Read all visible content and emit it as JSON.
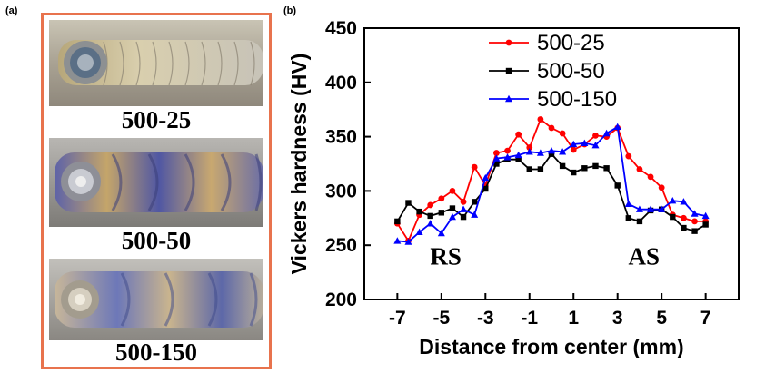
{
  "panel_labels": {
    "a": "(a)",
    "b": "(b)"
  },
  "photos": [
    {
      "caption": "500-25"
    },
    {
      "caption": "500-50"
    },
    {
      "caption": "500-150"
    }
  ],
  "colors": {
    "frame": "#e8734d"
  },
  "chart_data": {
    "type": "line",
    "xlabel": "Distance from center (mm)",
    "ylabel": "Vickers hardness (HV)",
    "xlim": [
      -8.5,
      8.5
    ],
    "ylim": [
      200,
      450
    ],
    "xticks": [
      -7,
      -5,
      -3,
      -1,
      1,
      3,
      5,
      7
    ],
    "yticks": [
      200,
      250,
      300,
      350,
      400,
      450
    ],
    "legend_position": "top-left",
    "annotations": [
      {
        "text": "RS",
        "x": -4.8,
        "y": 232
      },
      {
        "text": "AS",
        "x": 4.2,
        "y": 232
      }
    ],
    "series": [
      {
        "name": "500-25",
        "color": "#ff0000",
        "marker": "circle",
        "x": [
          -7,
          -6.5,
          -6,
          -5.5,
          -5,
          -4.5,
          -4,
          -3.5,
          -3,
          -2.5,
          -2,
          -1.5,
          -1,
          -0.5,
          0,
          0.5,
          1,
          1.5,
          2,
          2.5,
          3,
          3.5,
          4,
          4.5,
          5,
          5.5,
          6,
          6.5,
          7
        ],
        "values": [
          270,
          254,
          278,
          287,
          293,
          300,
          290,
          322,
          305,
          335,
          337,
          352,
          340,
          366,
          358,
          353,
          338,
          343,
          351,
          350,
          358,
          332,
          320,
          313,
          303,
          278,
          275,
          272,
          272
        ]
      },
      {
        "name": "500-50",
        "color": "#000000",
        "marker": "square",
        "x": [
          -7,
          -6.5,
          -6,
          -5.5,
          -5,
          -4.5,
          -4,
          -3.5,
          -3,
          -2.5,
          -2,
          -1.5,
          -1,
          -0.5,
          0,
          0.5,
          1,
          1.5,
          2,
          2.5,
          3,
          3.5,
          4,
          4.5,
          5,
          5.5,
          6,
          6.5,
          7
        ],
        "values": [
          272,
          289,
          281,
          277,
          280,
          284,
          276,
          290,
          302,
          325,
          329,
          329,
          320,
          320,
          334,
          323,
          317,
          321,
          323,
          321,
          305,
          275,
          272,
          282,
          283,
          276,
          266,
          263,
          269
        ]
      },
      {
        "name": "500-150",
        "color": "#0000ff",
        "marker": "triangle",
        "x": [
          -7,
          -6.5,
          -6,
          -5.5,
          -5,
          -4.5,
          -4,
          -3.5,
          -3,
          -2.5,
          -2,
          -1.5,
          -1,
          -0.5,
          0,
          0.5,
          1,
          1.5,
          2,
          2.5,
          3,
          3.5,
          4,
          4.5,
          5,
          5.5,
          6,
          6.5,
          7
        ],
        "values": [
          254,
          253,
          262,
          270,
          261,
          276,
          283,
          278,
          312,
          330,
          331,
          333,
          336,
          335,
          337,
          336,
          343,
          344,
          342,
          353,
          359,
          288,
          283,
          283,
          283,
          291,
          290,
          279,
          277
        ]
      }
    ]
  }
}
